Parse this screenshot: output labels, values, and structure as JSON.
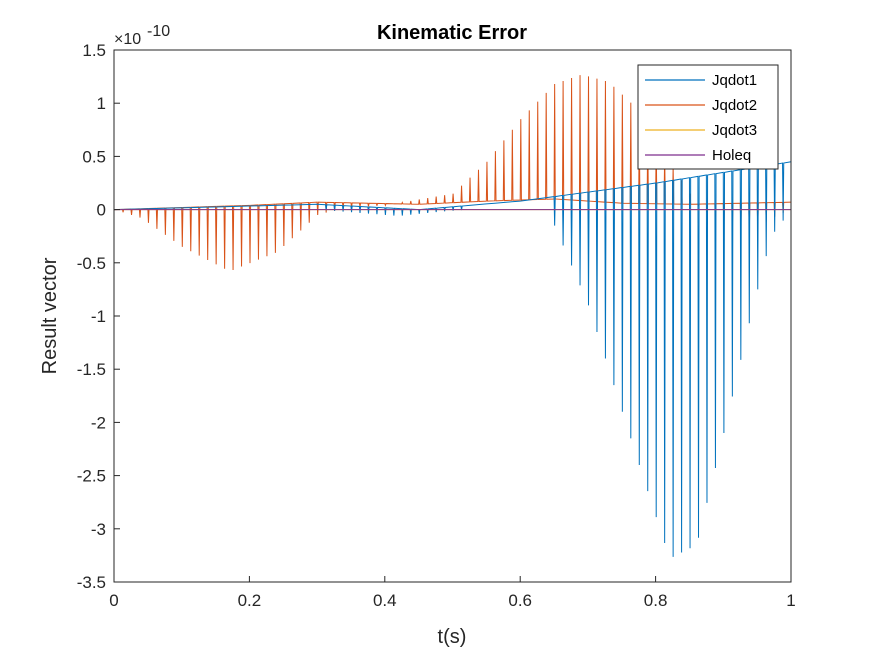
{
  "chart_data": {
    "type": "line",
    "title": "Kinematic Error",
    "xlabel": "t(s)",
    "ylabel": "Result vector",
    "xlim": [
      0,
      1
    ],
    "ylim": [
      -3.5,
      1.5
    ],
    "y_multiplier": "×10",
    "y_exponent": "-10",
    "x_ticks": [
      "0",
      "0.2",
      "0.4",
      "0.6",
      "0.8",
      "1"
    ],
    "y_ticks": [
      "-3.5",
      "-3",
      "-2.5",
      "-2",
      "-1.5",
      "-1",
      "-0.5",
      "0",
      "0.5",
      "1",
      "1.5"
    ],
    "grid": false,
    "legend_position": "top-right",
    "spike_count": 80,
    "series": [
      {
        "name": "Jqdot1",
        "color": "#0072BD",
        "baseline": {
          "x": [
            0,
            0.3,
            0.45,
            0.6,
            0.8,
            1.0
          ],
          "y": [
            0,
            0.05,
            0.0,
            0.08,
            0.25,
            0.45
          ]
        },
        "spike_envelope": {
          "x": [
            0,
            0.3,
            0.36,
            0.42,
            0.48,
            0.52,
            0.6,
            0.64,
            0.66,
            0.7,
            0.74,
            0.78,
            0.82,
            0.86,
            0.9,
            0.94,
            0.97,
            1.0
          ],
          "y": [
            0,
            0,
            -0.03,
            -0.06,
            -0.02,
            0,
            0,
            0,
            -0.3,
            -0.9,
            -1.7,
            -2.5,
            -3.28,
            -3.15,
            -2.1,
            -1.0,
            -0.25,
            0
          ]
        }
      },
      {
        "name": "Jqdot2",
        "color": "#D95319",
        "baseline": {
          "x": [
            0,
            0.2,
            0.3,
            0.45,
            0.55,
            0.65,
            0.75,
            0.85,
            1.0
          ],
          "y": [
            0,
            0.04,
            0.07,
            0.05,
            0.08,
            0.1,
            0.06,
            0.05,
            0.07
          ]
        },
        "spike_envelope": {
          "x": [
            0,
            0.04,
            0.1,
            0.17,
            0.24,
            0.3,
            0.34,
            0.4,
            0.5,
            0.55,
            0.6,
            0.65,
            0.69,
            0.73,
            0.78,
            0.82,
            0.86,
            0.9,
            0.94,
            0.98,
            1.0
          ],
          "y": [
            0,
            -0.08,
            -0.35,
            -0.58,
            -0.4,
            -0.05,
            0.02,
            0.04,
            0.15,
            0.45,
            0.85,
            1.18,
            1.27,
            1.2,
            0.9,
            0.45,
            0.05,
            -0.15,
            -0.2,
            -0.05,
            0
          ]
        }
      },
      {
        "name": "Jqdot3",
        "color": "#EDB120",
        "baseline": {
          "x": [
            0,
            1
          ],
          "y": [
            0,
            0
          ]
        },
        "spike_envelope": {
          "x": [
            0,
            1
          ],
          "y": [
            0,
            0
          ]
        }
      },
      {
        "name": "Holeq",
        "color": "#7E2F8E",
        "baseline": {
          "x": [
            0,
            1
          ],
          "y": [
            0,
            0
          ]
        },
        "spike_envelope": {
          "x": [
            0,
            1
          ],
          "y": [
            0,
            0
          ]
        }
      }
    ]
  }
}
